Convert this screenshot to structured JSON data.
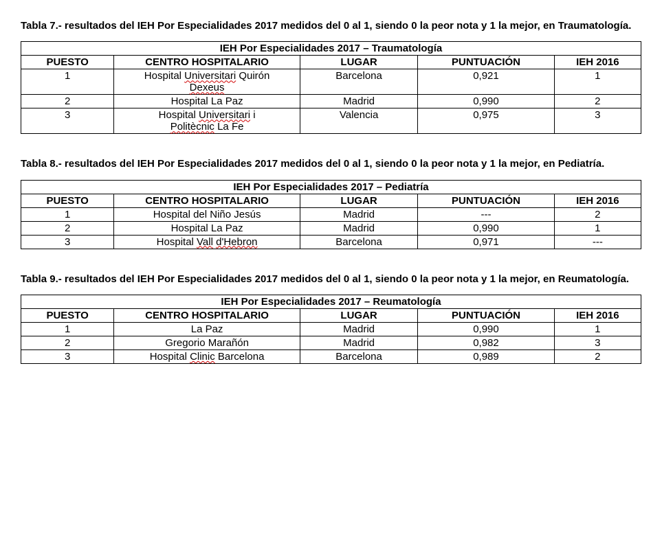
{
  "tables": [
    {
      "caption_pre": "Tabla 7.- resultados del IEH Por Especialidades 2017 medidos del 0 al 1, siendo 0 la peor nota y 1 la mejor, en ",
      "caption_spec": "Traumatología",
      "caption_post": ".",
      "title_pre": "IEH Por Especialidades 2017 – ",
      "title_spec": "Traumatología",
      "columns": [
        "PUESTO",
        "CENTRO HOSPITALARIO",
        "LUGAR",
        "PUNTUACIÓN",
        "IEH 2016"
      ],
      "rows": [
        {
          "puesto": "1",
          "centro_segs": [
            {
              "t": "Hospital "
            },
            {
              "t": "Universitari",
              "s": true
            },
            {
              "t": " Quirón"
            },
            {
              "br": true
            },
            {
              "t": "Dexeus",
              "s": true
            }
          ],
          "lugar": "Barcelona",
          "punt": "0,921",
          "ieh": "1"
        },
        {
          "puesto": "2",
          "centro_segs": [
            {
              "t": "Hospital La Paz"
            }
          ],
          "lugar": "Madrid",
          "punt": "0,990",
          "ieh": "2"
        },
        {
          "puesto": "3",
          "centro_segs": [
            {
              "t": "Hospital "
            },
            {
              "t": "Universitari",
              "s": true
            },
            {
              "t": " i"
            },
            {
              "br": true
            },
            {
              "t": "Politècnic",
              "s": true
            },
            {
              "t": " La Fe"
            }
          ],
          "lugar": "Valencia",
          "punt": "0,975",
          "ieh": "3"
        }
      ]
    },
    {
      "caption_pre": "Tabla 8.- resultados del IEH Por Especialidades 2017 medidos del 0 al 1, siendo 0 la peor nota y 1 la mejor, en ",
      "caption_spec": "Pediatría",
      "caption_post": ".",
      "title_pre": "IEH Por Especialidades 2017 – ",
      "title_spec": "Pediatría",
      "columns": [
        "PUESTO",
        "CENTRO HOSPITALARIO",
        "LUGAR",
        "PUNTUACIÓN",
        "IEH 2016"
      ],
      "rows": [
        {
          "puesto": "1",
          "centro_segs": [
            {
              "t": "Hospital del Niño Jesús"
            }
          ],
          "lugar": "Madrid",
          "punt": "---",
          "ieh": "2"
        },
        {
          "puesto": "2",
          "centro_segs": [
            {
              "t": "Hospital La Paz"
            }
          ],
          "lugar": "Madrid",
          "punt": "0,990",
          "ieh": "1"
        },
        {
          "puesto": "3",
          "centro_segs": [
            {
              "t": "Hospital "
            },
            {
              "t": "Vall",
              "s": true
            },
            {
              "t": " "
            },
            {
              "t": "d'Hebron",
              "s": true
            }
          ],
          "lugar": "Barcelona",
          "punt": "0,971",
          "ieh": "---"
        }
      ]
    },
    {
      "caption_pre": "Tabla 9.- resultados del IEH Por Especialidades 2017 medidos del 0 al 1, siendo 0 la peor nota y 1 la mejor, en ",
      "caption_spec": "Reumatología",
      "caption_post": ".",
      "title_pre": "IEH Por Especialidades 2017 – ",
      "title_spec": "Reumatología",
      "columns": [
        "PUESTO",
        "CENTRO HOSPITALARIO",
        "LUGAR",
        "PUNTUACIÓN",
        "IEH 2016"
      ],
      "rows": [
        {
          "puesto": "1",
          "centro_segs": [
            {
              "t": "La Paz"
            }
          ],
          "lugar": "Madrid",
          "punt": "0,990",
          "ieh": "1"
        },
        {
          "puesto": "2",
          "centro_segs": [
            {
              "t": "Gregorio Marañón"
            }
          ],
          "lugar": "Madrid",
          "punt": "0,982",
          "ieh": "3"
        },
        {
          "puesto": "3",
          "centro_segs": [
            {
              "t": "Hospital "
            },
            {
              "t": "Clinic",
              "s": true
            },
            {
              "t": " Barcelona"
            }
          ],
          "lugar": "Barcelona",
          "punt": "0,989",
          "ieh": "2"
        }
      ]
    }
  ]
}
